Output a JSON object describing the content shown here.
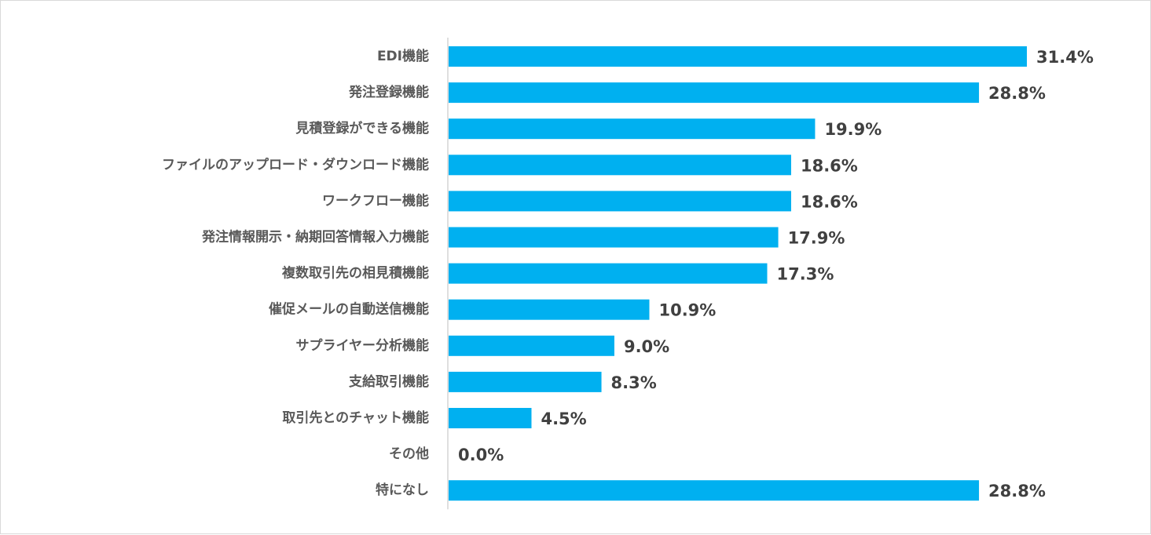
{
  "chart_data": {
    "type": "bar",
    "orientation": "horizontal",
    "categories": [
      "EDI機能",
      "発注登録機能",
      "見積登録ができる機能",
      "ファイルのアップロード・ダウンロード機能",
      "ワークフロー機能",
      "発注情報開示・納期回答情報入力機能",
      "複数取引先の相見積機能",
      "催促メールの自動送信機能",
      "サプライヤー分析機能",
      "支給取引機能",
      "取引先とのチャット機能",
      "その他",
      "特になし"
    ],
    "values": [
      31.4,
      28.8,
      19.9,
      18.6,
      18.6,
      17.9,
      17.3,
      10.9,
      9.0,
      8.3,
      4.5,
      0.0,
      28.8
    ],
    "value_labels": [
      "31.4%",
      "28.8%",
      "19.9%",
      "18.6%",
      "18.6%",
      "17.9%",
      "17.3%",
      "10.9%",
      "9.0%",
      "8.3%",
      "4.5%",
      "0.0%",
      "28.8%"
    ],
    "unit": "%",
    "xlim": [
      0,
      31.4
    ],
    "grid": false,
    "legend": "none",
    "bar_color": "#00b0f0"
  }
}
